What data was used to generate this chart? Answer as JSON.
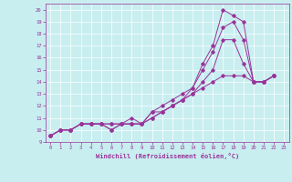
{
  "xlabel": "Windchill (Refroidissement éolien,°C)",
  "ylabel": "",
  "bg_color": "#c8eef0",
  "line_color": "#993399",
  "xlim": [
    -0.5,
    23.5
  ],
  "ylim": [
    9,
    20.5
  ],
  "xticks": [
    0,
    1,
    2,
    3,
    4,
    5,
    6,
    7,
    8,
    9,
    10,
    11,
    12,
    13,
    14,
    15,
    16,
    17,
    18,
    19,
    20,
    21,
    22,
    23
  ],
  "yticks": [
    9,
    10,
    11,
    12,
    13,
    14,
    15,
    16,
    17,
    18,
    19,
    20
  ],
  "series": [
    {
      "x": [
        0,
        1,
        2,
        3,
        4,
        5,
        6,
        7,
        8,
        9,
        10,
        11,
        12,
        13,
        14,
        15,
        16,
        17,
        18,
        19,
        20,
        21,
        22
      ],
      "y": [
        9.5,
        10.0,
        10.0,
        10.5,
        10.5,
        10.5,
        10.0,
        10.5,
        10.5,
        10.5,
        11.5,
        12.0,
        12.5,
        13.0,
        13.5,
        15.5,
        17.0,
        20.0,
        19.5,
        19.0,
        14.0,
        14.0,
        14.5
      ]
    },
    {
      "x": [
        0,
        1,
        2,
        3,
        4,
        5,
        6,
        7,
        8,
        9,
        10,
        11,
        12,
        13,
        14,
        15,
        16,
        17,
        18,
        19,
        20,
        21,
        22
      ],
      "y": [
        9.5,
        10.0,
        10.0,
        10.5,
        10.5,
        10.5,
        10.5,
        10.5,
        11.0,
        10.5,
        11.5,
        11.5,
        12.0,
        12.5,
        13.5,
        15.0,
        16.5,
        18.5,
        19.0,
        17.5,
        14.0,
        14.0,
        14.5
      ]
    },
    {
      "x": [
        0,
        1,
        2,
        3,
        4,
        5,
        6,
        7,
        8,
        9,
        10,
        11,
        12,
        13,
        14,
        15,
        16,
        17,
        18,
        19,
        20,
        21,
        22
      ],
      "y": [
        9.5,
        10.0,
        10.0,
        10.5,
        10.5,
        10.5,
        10.0,
        10.5,
        10.5,
        10.5,
        11.0,
        11.5,
        12.0,
        12.5,
        13.0,
        14.0,
        15.0,
        17.5,
        17.5,
        15.5,
        14.0,
        14.0,
        14.5
      ]
    },
    {
      "x": [
        0,
        1,
        2,
        3,
        4,
        5,
        6,
        7,
        8,
        9,
        10,
        11,
        12,
        13,
        14,
        15,
        16,
        17,
        18,
        19,
        20,
        21,
        22
      ],
      "y": [
        9.5,
        10.0,
        10.0,
        10.5,
        10.5,
        10.5,
        10.5,
        10.5,
        10.5,
        10.5,
        11.0,
        11.5,
        12.0,
        12.5,
        13.0,
        13.5,
        14.0,
        14.5,
        14.5,
        14.5,
        14.0,
        14.0,
        14.5
      ]
    }
  ]
}
